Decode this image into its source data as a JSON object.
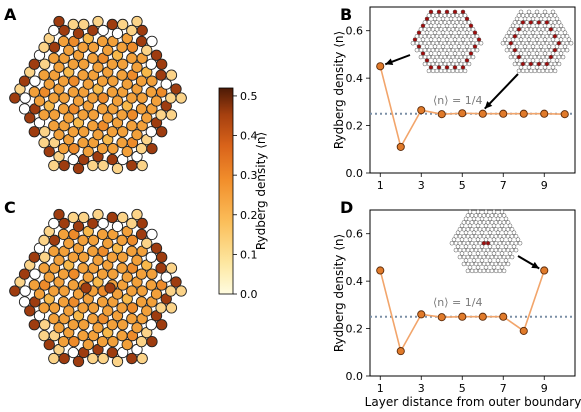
{
  "panel_labels": {
    "A": "A",
    "B": "B",
    "C": "C",
    "D": "D"
  },
  "colorbar": {
    "label": "Rydberg density ⟨n⟩",
    "ticks": [
      "0.0",
      "0.1",
      "0.2",
      "0.3",
      "0.4",
      "0.5"
    ],
    "range": [
      0,
      0.52
    ],
    "colormap": [
      "#fffce0",
      "#fde7a1",
      "#fbbe5a",
      "#f28f2c",
      "#d9631a",
      "#a6400f",
      "#4d1a06"
    ]
  },
  "lattice_A": {
    "outer_clusters": [
      "#fbd388",
      "#9e3c0f",
      "#ffffff",
      "#9e3c0f",
      "#fbd388",
      "#fbd388",
      "#9e3c0f",
      "#ffffff",
      "#9e3c0f",
      "#fbd388",
      "#fbd388",
      "#9e3c0f",
      "#ffffff",
      "#9e3c0f",
      "#fbd388",
      "#fbd388",
      "#9e3c0f",
      "#ffffff",
      "#9e3c0f",
      "#fbd388",
      "#fbd388",
      "#9e3c0f",
      "#ffffff",
      "#9e3c0f",
      "#fbd388",
      "#fbd388",
      "#9e3c0f",
      "#ffffff",
      "#9e3c0f",
      "#fbd388"
    ],
    "bulk_color": "#f2a03a"
  },
  "lattice_C": {
    "defect_clusters": [
      "#9e3c0f",
      "#9e3c0f"
    ],
    "bulk_color": "#f2a03a"
  },
  "chart_data": [
    {
      "type": "line",
      "panel": "B",
      "x": [
        1,
        2,
        3,
        4,
        5,
        6,
        7,
        8,
        9,
        10
      ],
      "series": [
        {
          "values": [
            0.45,
            0.11,
            0.265,
            0.248,
            0.252,
            0.25,
            0.25,
            0.25,
            0.25,
            0.248
          ],
          "color": "#f2a56b"
        }
      ],
      "xlabel": "",
      "ylabel": "Rydberg density ⟨n⟩",
      "xticks": [
        "1",
        "3",
        "5",
        "7",
        "9"
      ],
      "yticks": [
        "0.0",
        "0.2",
        "0.4",
        "0.6"
      ],
      "xlim": [
        0.5,
        10.5
      ],
      "ylim": [
        0,
        0.7
      ],
      "reference_line": {
        "value": 0.25,
        "label": "⟨n⟩ = 1/4",
        "color": "#7b8fa6"
      }
    },
    {
      "type": "line",
      "panel": "D",
      "x": [
        1,
        2,
        3,
        4,
        5,
        6,
        7,
        8,
        9
      ],
      "series": [
        {
          "values": [
            0.445,
            0.105,
            0.26,
            0.248,
            0.25,
            0.25,
            0.25,
            0.19,
            0.445
          ],
          "color": "#f2a56b"
        }
      ],
      "xlabel": "Layer distance from outer boundary",
      "ylabel": "Rydberg density ⟨n⟩",
      "xticks": [
        "1",
        "3",
        "5",
        "7",
        "9"
      ],
      "yticks": [
        "0.0",
        "0.2",
        "0.4",
        "0.6"
      ],
      "xlim": [
        0.5,
        10.5
      ],
      "ylim": [
        0,
        0.7
      ],
      "reference_line": {
        "value": 0.25,
        "label": "⟨n⟩ = 1/4",
        "color": "#7b8fa6"
      }
    }
  ]
}
